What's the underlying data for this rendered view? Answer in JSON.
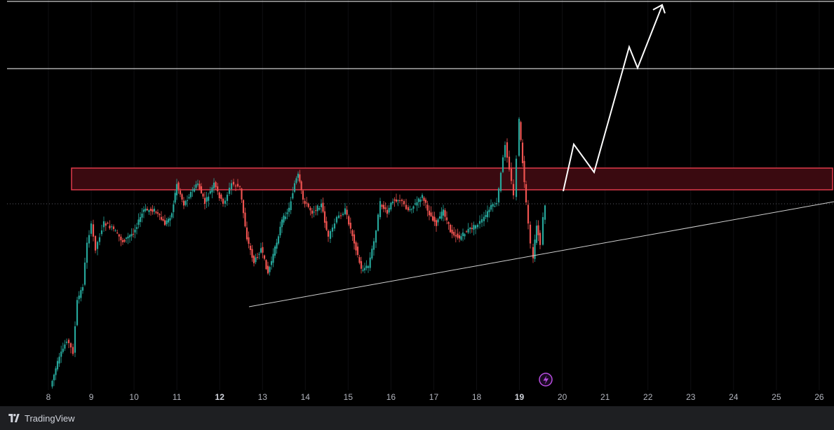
{
  "chart_data": {
    "type": "candlestick",
    "x_tick_labels": [
      "8",
      "9",
      "10",
      "11",
      "12",
      "13",
      "14",
      "15",
      "16",
      "17",
      "18",
      "19",
      "20",
      "21",
      "22",
      "23",
      "24",
      "25",
      "26"
    ],
    "bold_ticks": [
      "12",
      "19"
    ],
    "colors": {
      "up": "#26a69a",
      "down": "#ef5350",
      "zone_fill": "#3a0a10",
      "zone_border": "#e03b4a",
      "lines": "#ffffff",
      "flash": "#b84de0"
    },
    "annotations": [
      "horizontal resistance lines",
      "resistance zone rectangle",
      "ascending support trendline",
      "projected zig-zag path with upward arrow"
    ]
  },
  "footer": {
    "brand_label": "TradingView"
  }
}
